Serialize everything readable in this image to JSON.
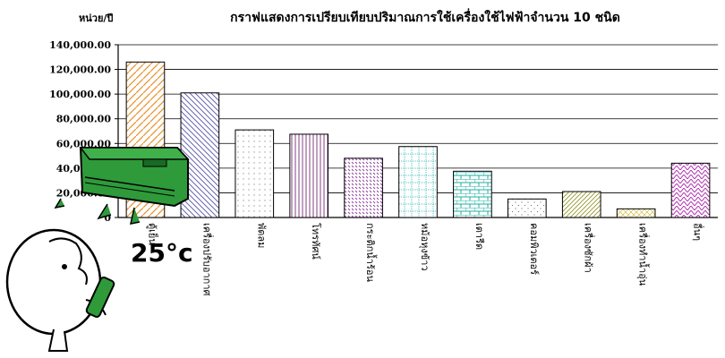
{
  "chart_data": {
    "type": "bar",
    "title": "กราฟแสดงการเปรียบเทียบปริมาณการใช้เครื่องใช้ไฟฟ้าจำนวน 10 ชนิด",
    "ylabel": "หน่วย/ปี",
    "xlabel": "",
    "ylim": [
      0,
      140000
    ],
    "yticks": [
      "0",
      "20,000.00",
      "40,000.00",
      "60,000.00",
      "80,000.00",
      "100,000.00",
      "120,000.00",
      "140,000.00"
    ],
    "grid": true,
    "categories": [
      "ตู้เย็น",
      "เครื่องปรับอากาศ",
      "พัดลม",
      "โทรทัศน์",
      "กระติกน้ำร้อน",
      "หม้อหุงข้าว",
      "เตารีด",
      "คอมพิวเตอร์",
      "เครื่องซักผ้า",
      "เครื่องทำน้ำอุ่น",
      "อื่นๆ"
    ],
    "values": [
      126000,
      101000,
      71000,
      67500,
      48000,
      57500,
      37500,
      15000,
      21000,
      7000,
      44000
    ],
    "colors": [
      "#e8902a",
      "#6666b0",
      "#9a9a9a",
      "#804080",
      "#9040a0",
      "#20b0b0",
      "#20b0a0",
      "#707070",
      "#909020",
      "#c8b020",
      "#b030b0"
    ]
  },
  "illustration": {
    "temperature": "25°c"
  }
}
